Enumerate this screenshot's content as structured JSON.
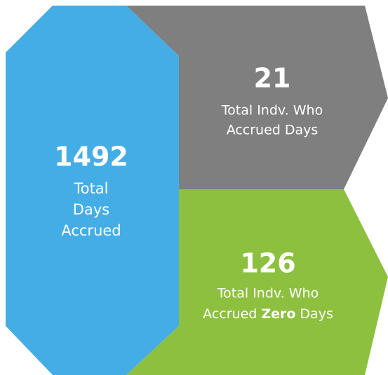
{
  "tiles": [
    {
      "value": 1492,
      "lines": [
        "Total",
        "Days",
        "Accrued"
      ]
    },
    {
      "value": 21,
      "lines": [
        "Total Indv. Who",
        "Accrued Days"
      ]
    },
    {
      "value": 126,
      "lines": [
        "Total Indv. Who"
      ],
      "last_line": [
        "Accrued",
        "Zero",
        "Days"
      ]
    }
  ]
}
